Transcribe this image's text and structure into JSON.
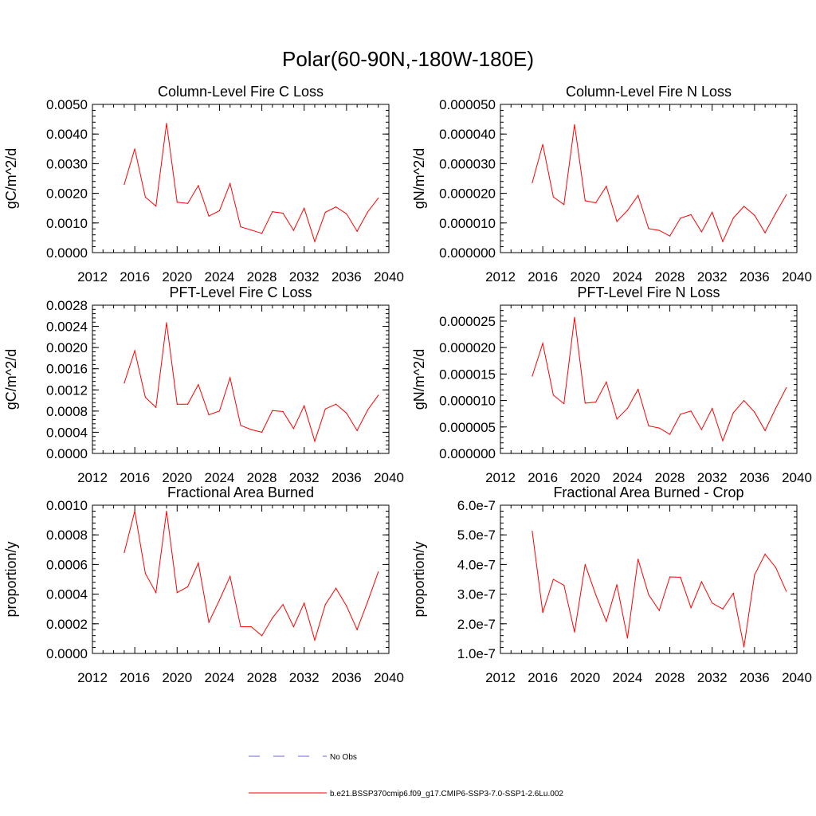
{
  "page_title": "Polar(60-90N,-180W-180E)",
  "colors": {
    "model_line": "#ff0000",
    "obs_line": "#6a6ad8",
    "axis": "#000000"
  },
  "legend": {
    "obs_label": "No Obs",
    "model_label": "b.e21.BSSP370cmip6.f09_g17.CMIP6-SSP3-7.0-SSP1-2.6Lu.002"
  },
  "chart_data": [
    {
      "id": "c-loss-col",
      "type": "line",
      "title": "Column-Level Fire C Loss",
      "ylabel": "gC/m^2/d",
      "xlim": [
        2012,
        2040
      ],
      "xticks": [
        2012,
        2016,
        2020,
        2024,
        2028,
        2032,
        2036,
        2040
      ],
      "ylim": [
        0,
        0.005
      ],
      "yticks": [
        "0.0000",
        "0.0010",
        "0.0020",
        "0.0030",
        "0.0040",
        "0.0050"
      ],
      "ytick_values": [
        0,
        0.001,
        0.002,
        0.003,
        0.004,
        0.005
      ],
      "series": [
        {
          "x": [
            2015,
            2016,
            2017,
            2018,
            2019,
            2020,
            2021,
            2022,
            2023,
            2024,
            2025,
            2026,
            2027,
            2028,
            2029,
            2030,
            2031,
            2032,
            2033,
            2034,
            2035,
            2036,
            2037,
            2038,
            2039
          ],
          "values": [
            0.0023,
            0.0035,
            0.00187,
            0.00157,
            0.00436,
            0.0017,
            0.00166,
            0.00226,
            0.00123,
            0.00141,
            0.00233,
            0.00087,
            0.00076,
            0.00065,
            0.00138,
            0.00133,
            0.00075,
            0.0015,
            0.00037,
            0.00136,
            0.00154,
            0.00131,
            0.00072,
            0.00137,
            0.00184
          ]
        }
      ]
    },
    {
      "id": "n-loss-col",
      "type": "line",
      "title": "Column-Level Fire N Loss",
      "ylabel": "gN/m^2/d",
      "xlim": [
        2012,
        2040
      ],
      "xticks": [
        2012,
        2016,
        2020,
        2024,
        2028,
        2032,
        2036,
        2040
      ],
      "ylim": [
        0,
        5e-05
      ],
      "yticks": [
        "0.000000",
        "0.000010",
        "0.000020",
        "0.000030",
        "0.000040",
        "0.000050"
      ],
      "ytick_values": [
        0,
        1e-05,
        2e-05,
        3e-05,
        4e-05,
        5e-05
      ],
      "series": [
        {
          "x": [
            2015,
            2016,
            2017,
            2018,
            2019,
            2020,
            2021,
            2022,
            2023,
            2024,
            2025,
            2026,
            2027,
            2028,
            2029,
            2030,
            2031,
            2032,
            2033,
            2034,
            2035,
            2036,
            2037,
            2038,
            2039
          ],
          "values": [
            2.36e-05,
            3.65e-05,
            1.88e-05,
            1.62e-05,
            4.32e-05,
            1.75e-05,
            1.68e-05,
            2.24e-05,
            1.05e-05,
            1.42e-05,
            1.93e-05,
            8.1e-06,
            7.5e-06,
            5.6e-06,
            1.16e-05,
            1.28e-05,
            7e-06,
            1.36e-05,
            3.7e-06,
            1.17e-05,
            1.56e-05,
            1.26e-05,
            6.7e-06,
            1.33e-05,
            1.95e-05
          ]
        }
      ]
    },
    {
      "id": "c-loss-pft",
      "type": "line",
      "title": "PFT-Level Fire C Loss",
      "ylabel": "gC/m^2/d",
      "xlim": [
        2012,
        2040
      ],
      "xticks": [
        2012,
        2016,
        2020,
        2024,
        2028,
        2032,
        2036,
        2040
      ],
      "ylim": [
        0,
        0.0028
      ],
      "yticks": [
        "0.0000",
        "0.0004",
        "0.0008",
        "0.0012",
        "0.0016",
        "0.0020",
        "0.0024",
        "0.0028"
      ],
      "ytick_values": [
        0,
        0.0004,
        0.0008,
        0.0012,
        0.0016,
        0.002,
        0.0024,
        0.0028
      ],
      "series": [
        {
          "x": [
            2015,
            2016,
            2017,
            2018,
            2019,
            2020,
            2021,
            2022,
            2023,
            2024,
            2025,
            2026,
            2027,
            2028,
            2029,
            2030,
            2031,
            2032,
            2033,
            2034,
            2035,
            2036,
            2037,
            2038,
            2039
          ],
          "values": [
            0.00133,
            0.00194,
            0.00106,
            0.00087,
            0.00247,
            0.00093,
            0.00093,
            0.0013,
            0.00073,
            0.0008,
            0.00143,
            0.00053,
            0.00045,
            0.0004,
            0.00081,
            0.00079,
            0.00047,
            0.0009,
            0.00023,
            0.00084,
            0.00093,
            0.00076,
            0.00043,
            0.00082,
            0.0011
          ]
        }
      ]
    },
    {
      "id": "n-loss-pft",
      "type": "line",
      "title": "PFT-Level Fire N Loss",
      "ylabel": "gN/m^2/d",
      "xlim": [
        2012,
        2040
      ],
      "xticks": [
        2012,
        2016,
        2020,
        2024,
        2028,
        2032,
        2036,
        2040
      ],
      "ylim": [
        0,
        2.8e-05
      ],
      "yticks": [
        "0.000000",
        "0.000005",
        "0.000010",
        "0.000015",
        "0.000020",
        "0.000025"
      ],
      "ytick_values": [
        0,
        5e-06,
        1e-05,
        1.5e-05,
        2e-05,
        2.5e-05
      ],
      "series": [
        {
          "x": [
            2015,
            2016,
            2017,
            2018,
            2019,
            2020,
            2021,
            2022,
            2023,
            2024,
            2025,
            2026,
            2027,
            2028,
            2029,
            2030,
            2031,
            2032,
            2033,
            2034,
            2035,
            2036,
            2037,
            2038,
            2039
          ],
          "values": [
            1.46e-05,
            2.08e-05,
            1.1e-05,
            9.4e-06,
            2.57e-05,
            9.5e-06,
            9.7e-06,
            1.35e-05,
            6.5e-06,
            8.5e-06,
            1.21e-05,
            5.2e-06,
            4.8e-06,
            3.6e-06,
            7.4e-06,
            8e-06,
            4.5e-06,
            8.5e-06,
            2.4e-06,
            7.7e-06,
            1e-05,
            7.8e-06,
            4.3e-06,
            8.5e-06,
            1.24e-05
          ]
        }
      ]
    },
    {
      "id": "area-burned",
      "type": "line",
      "title": "Fractional Area Burned",
      "ylabel": "proportion/y",
      "xlim": [
        2012,
        2040
      ],
      "xticks": [
        2012,
        2016,
        2020,
        2024,
        2028,
        2032,
        2036,
        2040
      ],
      "ylim": [
        0,
        0.001
      ],
      "yticks": [
        "0.0000",
        "0.0002",
        "0.0004",
        "0.0006",
        "0.0008",
        "0.0010"
      ],
      "ytick_values": [
        0,
        0.0002,
        0.0004,
        0.0006,
        0.0008,
        0.001
      ],
      "series": [
        {
          "x": [
            2015,
            2016,
            2017,
            2018,
            2019,
            2020,
            2021,
            2022,
            2023,
            2024,
            2025,
            2026,
            2027,
            2028,
            2029,
            2030,
            2031,
            2032,
            2033,
            2034,
            2035,
            2036,
            2037,
            2038,
            2039
          ],
          "values": [
            0.00068,
            0.00096,
            0.00054,
            0.00041,
            0.00096,
            0.00041,
            0.00045,
            0.00061,
            0.00021,
            0.00036,
            0.00052,
            0.00018,
            0.00018,
            0.00012,
            0.00024,
            0.00033,
            0.00018,
            0.00034,
            9e-05,
            0.00033,
            0.00044,
            0.00032,
            0.00016,
            0.00035,
            0.00055
          ]
        }
      ]
    },
    {
      "id": "area-burned-crop",
      "type": "line",
      "title": "Fractional Area Burned - Crop",
      "ylabel": "proportion/y",
      "xlim": [
        2012,
        2040
      ],
      "xticks": [
        2012,
        2016,
        2020,
        2024,
        2028,
        2032,
        2036,
        2040
      ],
      "ylim": [
        1e-07,
        6e-07
      ],
      "yticks": [
        "1.0e-7",
        "2.0e-7",
        "3.0e-7",
        "4.0e-7",
        "5.0e-7",
        "6.0e-7"
      ],
      "ytick_values": [
        1e-07,
        2e-07,
        3e-07,
        4e-07,
        5e-07,
        6e-07
      ],
      "series": [
        {
          "x": [
            2015,
            2016,
            2017,
            2018,
            2019,
            2020,
            2021,
            2022,
            2023,
            2024,
            2025,
            2026,
            2027,
            2028,
            2029,
            2030,
            2031,
            2032,
            2033,
            2034,
            2035,
            2036,
            2037,
            2038,
            2039
          ],
          "values": [
            5.12e-07,
            2.38e-07,
            3.5e-07,
            3.3e-07,
            1.72e-07,
            4e-07,
            2.98e-07,
            2.08e-07,
            3.32e-07,
            1.52e-07,
            4.18e-07,
            2.98e-07,
            2.45e-07,
            3.58e-07,
            3.57e-07,
            2.54e-07,
            3.42e-07,
            2.7e-07,
            2.5e-07,
            3.03e-07,
            1.22e-07,
            3.65e-07,
            4.35e-07,
            3.9e-07,
            3.1e-07
          ]
        }
      ]
    }
  ]
}
